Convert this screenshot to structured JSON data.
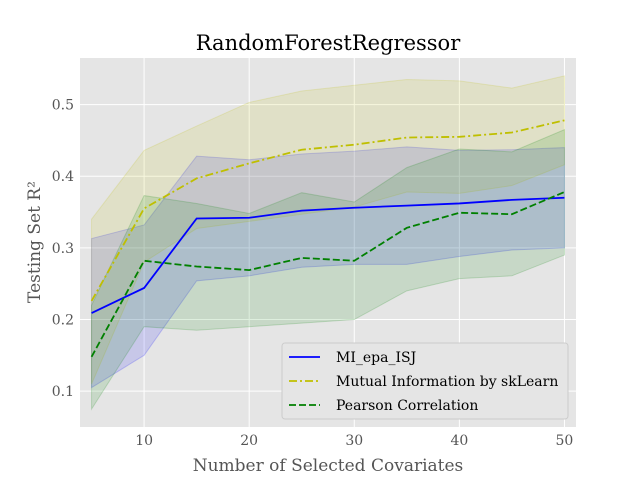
{
  "chart_data": {
    "type": "line",
    "title": "RandomForestRegressor",
    "xlabel": "Number of Selected Covariates",
    "ylabel": "Testing Set R²",
    "xlim": [
      3.9,
      51.1
    ],
    "ylim": [
      0.05,
      0.565
    ],
    "xticks": [
      10,
      20,
      30,
      40,
      50
    ],
    "yticks": [
      0.1,
      0.2,
      0.3,
      0.4,
      0.5
    ],
    "xtick_labels": [
      "10",
      "20",
      "30",
      "40",
      "50"
    ],
    "ytick_labels": [
      "0.1",
      "0.2",
      "0.3",
      "0.4",
      "0.5"
    ],
    "grid": true,
    "legend_position": "lower-right",
    "x": [
      5,
      10,
      15,
      20,
      25,
      30,
      35,
      40,
      45,
      50
    ],
    "series": [
      {
        "name": "MI_epa_ISJ",
        "color": "#0000ff",
        "dash": "solid",
        "values": [
          0.209,
          0.244,
          0.341,
          0.342,
          0.352,
          0.356,
          0.359,
          0.362,
          0.367,
          0.37
        ],
        "lower": [
          0.105,
          0.15,
          0.254,
          0.261,
          0.273,
          0.277,
          0.277,
          0.288,
          0.297,
          0.3
        ],
        "upper": [
          0.313,
          0.332,
          0.428,
          0.423,
          0.431,
          0.435,
          0.441,
          0.436,
          0.437,
          0.44
        ]
      },
      {
        "name": "Mutual Information by skLearn",
        "color": "#bfbf00",
        "dash": "dashdot",
        "values": [
          0.226,
          0.355,
          0.397,
          0.418,
          0.437,
          0.444,
          0.454,
          0.455,
          0.461,
          0.478
        ],
        "lower": [
          0.11,
          0.28,
          0.327,
          0.337,
          0.347,
          0.357,
          0.378,
          0.376,
          0.387,
          0.416
        ],
        "upper": [
          0.34,
          0.436,
          0.47,
          0.503,
          0.519,
          0.527,
          0.535,
          0.533,
          0.523,
          0.54
        ]
      },
      {
        "name": "Pearson Correlation",
        "color": "#008000",
        "dash": "dashed",
        "values": [
          0.148,
          0.282,
          0.274,
          0.269,
          0.286,
          0.282,
          0.328,
          0.349,
          0.347,
          0.378
        ],
        "lower": [
          0.075,
          0.19,
          0.185,
          0.19,
          0.195,
          0.2,
          0.24,
          0.257,
          0.261,
          0.29
        ],
        "upper": [
          0.22,
          0.373,
          0.362,
          0.348,
          0.377,
          0.364,
          0.412,
          0.438,
          0.434,
          0.465
        ]
      }
    ]
  }
}
